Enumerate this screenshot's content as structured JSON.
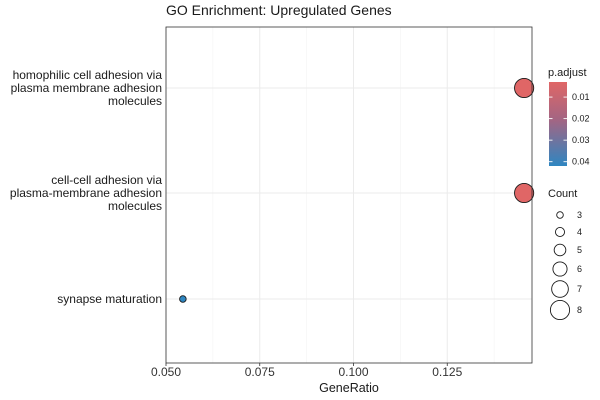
{
  "chart_data": {
    "type": "scatter",
    "title": "GO Enrichment: Upregulated Genes",
    "xlabel": "GeneRatio",
    "ylabel": "",
    "xlim": [
      0.05,
      0.1476
    ],
    "x_ticks": [
      0.05,
      0.075,
      0.1,
      0.125
    ],
    "x_tick_labels": [
      "0.050",
      "0.075",
      "0.100",
      "0.125"
    ],
    "categories": [
      "homophilic cell adhesion via plasma membrane adhesion molecules",
      "cell-cell adhesion via plasma-membrane adhesion molecules",
      "synapse maturation"
    ],
    "category_label_lines": [
      [
        "homophilic cell adhesion via",
        "plasma membrane adhesion",
        "molecules"
      ],
      [
        "cell-cell adhesion via",
        "plasma-membrane adhesion",
        "molecules"
      ],
      [
        "synapse maturation"
      ]
    ],
    "points": [
      {
        "term": "homophilic cell adhesion via plasma membrane adhesion molecules",
        "gene_ratio": 0.1455,
        "count": 8,
        "p_adjust": 0.003
      },
      {
        "term": "cell-cell adhesion via plasma-membrane adhesion molecules",
        "gene_ratio": 0.1455,
        "count": 8,
        "p_adjust": 0.003
      },
      {
        "term": "synapse maturation",
        "gene_ratio": 0.0545,
        "count": 3,
        "p_adjust": 0.042
      }
    ],
    "color_legend": {
      "title": "p.adjust",
      "range": [
        0.003,
        0.042
      ],
      "ticks": [
        0.01,
        0.02,
        0.03,
        0.04
      ],
      "tick_labels": [
        "0.01",
        "0.02",
        "0.03",
        "0.04"
      ],
      "low_color": "#e06666",
      "high_color": "#2e86c1"
    },
    "size_legend": {
      "title": "Count",
      "values": [
        3,
        4,
        5,
        6,
        7,
        8
      ],
      "labels": [
        "3",
        "4",
        "5",
        "6",
        "7",
        "8"
      ]
    },
    "grid": true,
    "legend_position": "right"
  }
}
